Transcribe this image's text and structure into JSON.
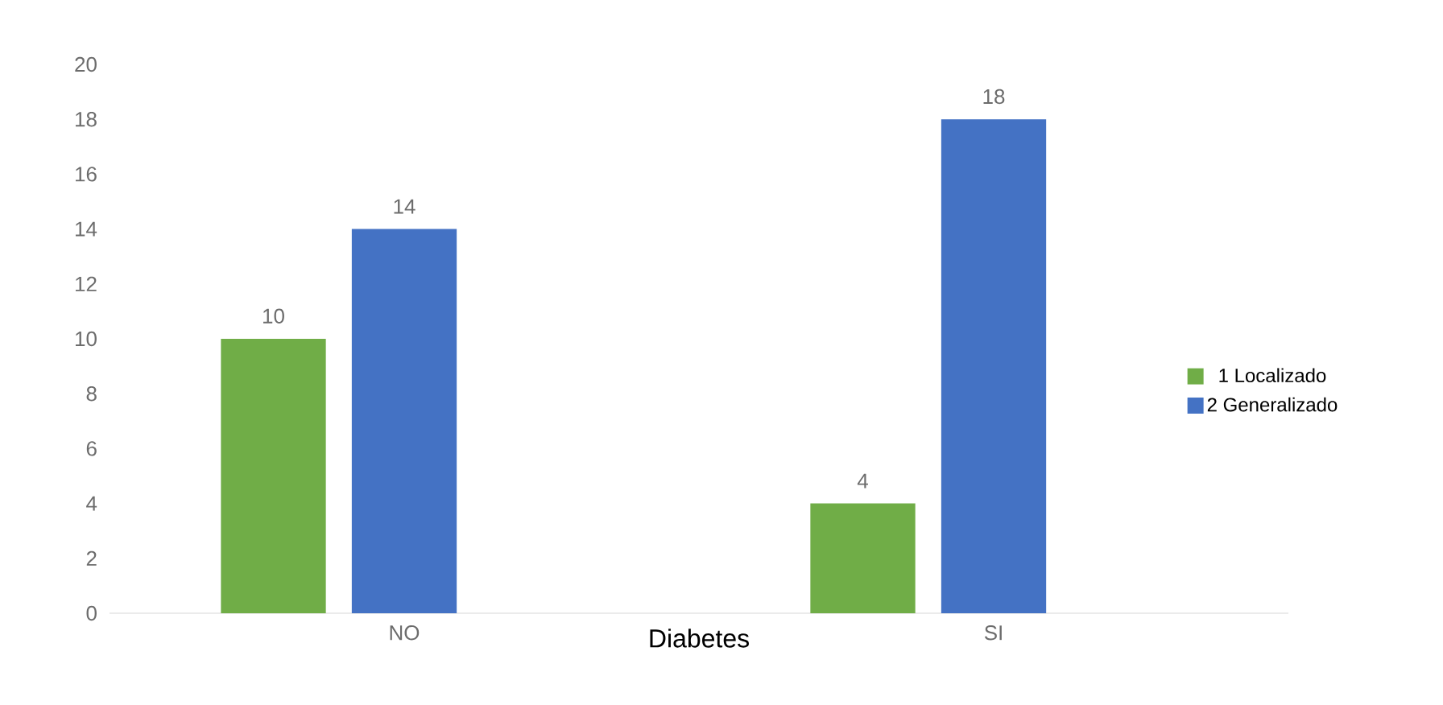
{
  "chart_data": {
    "type": "bar",
    "xlabel": "Diabetes",
    "categories": [
      "NO",
      "SI"
    ],
    "series": [
      {
        "name": "1 Localizado",
        "color": "#70ad47",
        "values": [
          10,
          4
        ]
      },
      {
        "name": "2 Generalizado",
        "color": "#4472c4",
        "values": [
          14,
          18
        ]
      }
    ],
    "ylim": [
      0,
      20
    ],
    "yticks": [
      0,
      2,
      4,
      6,
      8,
      10,
      12,
      14,
      16,
      18,
      20
    ],
    "grid": false,
    "legend": "right",
    "data_labels": true
  }
}
